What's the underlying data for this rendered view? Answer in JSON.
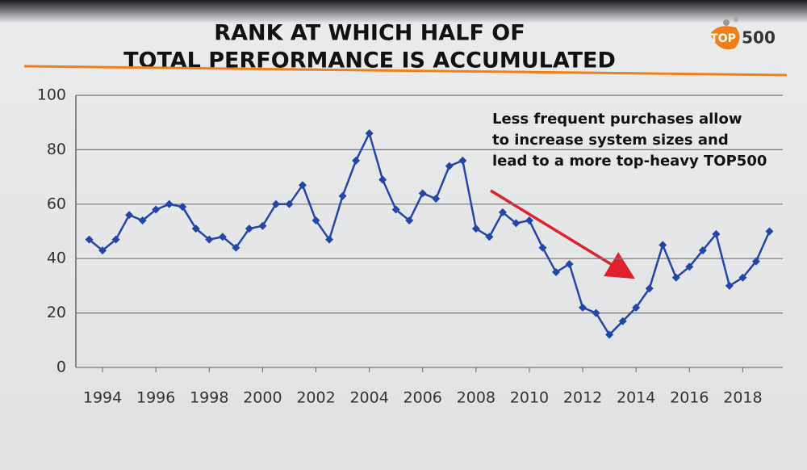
{
  "chart_data": {
    "type": "line",
    "title_lines": [
      "RANK AT WHICH HALF OF",
      "TOTAL PERFORMANCE IS ACCUMULATED"
    ],
    "logo": [
      "TOP",
      "500"
    ],
    "annotation_lines": [
      "Less frequent purchases allow",
      "to increase system sizes and",
      "lead to a more top-heavy TOP500"
    ],
    "x": [
      1993.5,
      1994,
      1994.5,
      1995,
      1995.5,
      1996,
      1996.5,
      1997,
      1997.5,
      1998,
      1998.5,
      1999,
      1999.5,
      2000,
      2000.5,
      2001,
      2001.5,
      2002,
      2002.5,
      2003,
      2003.5,
      2004,
      2004.5,
      2005,
      2005.5,
      2006,
      2006.5,
      2007,
      2007.5,
      2008,
      2008.5,
      2009,
      2009.5,
      2010,
      2010.5,
      2011,
      2011.5,
      2012,
      2012.5,
      2013,
      2013.5,
      2014,
      2014.5,
      2015,
      2015.5,
      2016,
      2016.5,
      2017,
      2017.5,
      2018,
      2018.5,
      2019
    ],
    "series": [
      {
        "color": "#2446a8",
        "values": [
          47,
          43,
          47,
          56,
          54,
          58,
          60,
          59,
          51,
          47,
          48,
          44,
          51,
          52,
          60,
          60,
          67,
          54,
          47,
          63,
          76,
          86,
          69,
          58,
          54,
          64,
          62,
          74,
          76,
          51,
          48,
          57,
          53,
          54,
          44,
          35,
          38,
          22,
          20,
          12,
          17,
          22,
          29,
          45,
          33,
          37,
          43,
          49,
          30,
          33,
          39,
          50
        ]
      }
    ],
    "xlim": [
      1993,
      2019.5
    ],
    "xticks": [
      1994,
      1996,
      1998,
      2000,
      2002,
      2004,
      2006,
      2008,
      2010,
      2012,
      2014,
      2016,
      2018
    ],
    "ylim": [
      0,
      100
    ],
    "yticks": [
      0,
      20,
      40,
      60,
      80,
      100
    ],
    "grid": true
  }
}
